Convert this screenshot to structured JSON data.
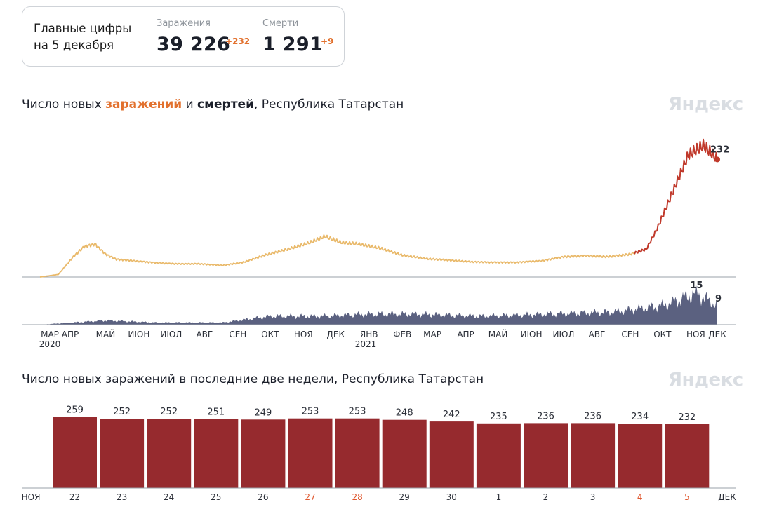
{
  "summary": {
    "title_line1": "Главные цифры",
    "title_line2": "на 5 декабря",
    "cases_label": "Заражения",
    "cases_value": "39 226",
    "cases_delta": "+232",
    "deaths_label": "Смерти",
    "deaths_value": "1 291",
    "deaths_delta": "+9"
  },
  "chart1": {
    "title_pre": "Число новых ",
    "title_infections": "заражений",
    "title_mid": " и ",
    "title_deaths": "смертей",
    "title_post": ", Республика Татарстан",
    "watermark": "Яндекс",
    "last_cases_label": "232",
    "peak_deaths_label": "15",
    "last_deaths_label": "9",
    "month_ticks": [
      "МАР",
      "АПР",
      "МАЙ",
      "ИЮН",
      "ИЮЛ",
      "АВГ",
      "СЕН",
      "ОКТ",
      "НОЯ",
      "ДЕК",
      "ЯНВ",
      "ФЕВ",
      "МАР",
      "АПР",
      "МАЙ",
      "ИЮН",
      "ИЮЛ",
      "АВГ",
      "СЕН",
      "ОКТ",
      "НОЯ",
      "ДЕК"
    ],
    "year_ticks": [
      "2020",
      "2021"
    ]
  },
  "chart2": {
    "title": "Число новых заражений в последние две недели, Республика Татарстан",
    "watermark": "Яндекс",
    "start_month": "НОЯ",
    "end_month": "ДЕК"
  },
  "colors": {
    "infections_early": "#e9b96a",
    "infections_late": "#c0392b",
    "deaths": "#5b6180",
    "bars": "#962a2e",
    "weekend": "#e0582f",
    "accent": "#e2712e"
  },
  "chart_data": [
    {
      "type": "line",
      "title": "Число новых заражений и смертей, Республика Татарстан",
      "series": [
        {
          "name": "заражений",
          "x": [
            "2020-03-15",
            "2020-04-01",
            "2020-04-15",
            "2020-04-25",
            "2020-05-05",
            "2020-05-15",
            "2020-05-25",
            "2020-06-10",
            "2020-07-01",
            "2020-07-20",
            "2020-08-10",
            "2020-09-01",
            "2020-09-20",
            "2020-10-10",
            "2020-11-01",
            "2020-11-20",
            "2020-12-05",
            "2020-12-20",
            "2021-01-05",
            "2021-01-25",
            "2021-02-15",
            "2021-03-10",
            "2021-04-01",
            "2021-04-20",
            "2021-05-10",
            "2021-06-01",
            "2021-06-25",
            "2021-07-15",
            "2021-08-05",
            "2021-08-25",
            "2021-09-15",
            "2021-09-30",
            "2021-10-10",
            "2021-10-20",
            "2021-10-30",
            "2021-11-08",
            "2021-11-15",
            "2021-11-22",
            "2021-11-29",
            "2021-12-05"
          ],
          "values": [
            0,
            5,
            40,
            60,
            65,
            45,
            35,
            32,
            28,
            26,
            26,
            23,
            29,
            43,
            55,
            67,
            80,
            68,
            65,
            57,
            43,
            36,
            33,
            30,
            29,
            29,
            32,
            40,
            42,
            40,
            45,
            55,
            95,
            145,
            195,
            240,
            250,
            259,
            245,
            232
          ]
        },
        {
          "name": "смертей",
          "x": [
            "2020-03-15",
            "2020-04-15",
            "2020-05-15",
            "2020-07-01",
            "2020-09-01",
            "2020-10-15",
            "2020-12-01",
            "2021-01-15",
            "2021-03-01",
            "2021-05-01",
            "2021-07-01",
            "2021-09-01",
            "2021-10-15",
            "2021-11-01",
            "2021-11-15",
            "2021-12-05"
          ],
          "values": [
            0,
            1,
            2,
            1,
            1,
            4,
            4,
            5,
            5,
            4,
            5,
            6,
            9,
            12,
            15,
            9
          ]
        }
      ]
    },
    {
      "type": "bar",
      "title": "Число новых заражений в последние две недели, Республика Татарстан",
      "categories": [
        "22",
        "23",
        "24",
        "25",
        "26",
        "27",
        "28",
        "29",
        "30",
        "1",
        "2",
        "3",
        "4",
        "5"
      ],
      "values": [
        259,
        252,
        252,
        251,
        249,
        253,
        253,
        248,
        242,
        235,
        236,
        236,
        234,
        232
      ],
      "weekend": [
        false,
        false,
        false,
        false,
        false,
        true,
        true,
        false,
        false,
        false,
        false,
        false,
        true,
        true
      ]
    }
  ]
}
